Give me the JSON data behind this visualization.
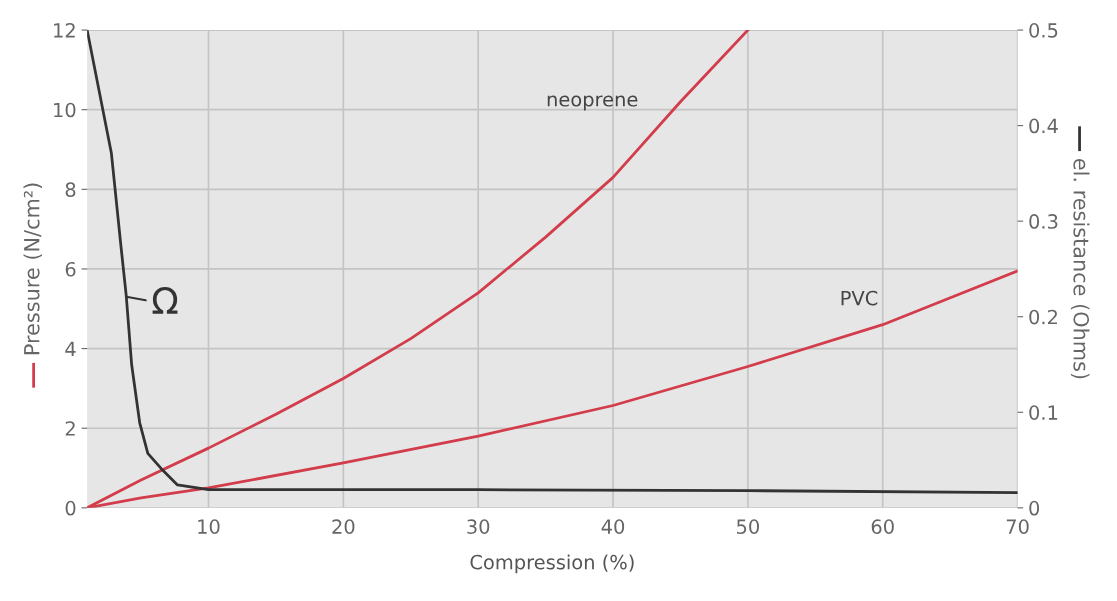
{
  "chart_data": {
    "type": "line",
    "xlabel": "Compression (%)",
    "ylabel": "Pressure (N/cm²)",
    "y2label": "el. resistance (Ohms)",
    "xlim": [
      1,
      70
    ],
    "xticks": [
      10,
      20,
      30,
      40,
      50,
      60,
      70
    ],
    "ylim": [
      0,
      12
    ],
    "yticks": [
      0,
      2,
      4,
      6,
      8,
      10,
      12
    ],
    "y2lim": [
      0,
      0.5
    ],
    "y2ticks": [
      0,
      0.1,
      0.2,
      0.3,
      0.4,
      0.5
    ],
    "grid": true,
    "marker": "none",
    "line_style": "solid",
    "series": [
      {
        "name": "neoprene",
        "color": "#d23c4b",
        "x": [
          1,
          5,
          10,
          15,
          20,
          25,
          30,
          35,
          40,
          45,
          50
        ],
        "values": [
          0,
          0.7,
          1.5,
          2.35,
          3.25,
          4.25,
          5.4,
          6.8,
          8.3,
          10.2,
          12
        ]
      },
      {
        "name": "PVC",
        "color": "#d23c4b",
        "x": [
          1,
          5,
          10,
          20,
          30,
          40,
          50,
          60,
          70
        ],
        "values": [
          0,
          0.25,
          0.5,
          1.13,
          1.8,
          2.57,
          3.55,
          4.6,
          5.95
        ]
      },
      {
        "color": "#333333",
        "axis": "y2",
        "x": [
          1,
          2.8,
          3.5,
          3.9,
          4.3,
          4.9,
          5.5,
          6.5,
          7.7,
          10,
          30,
          50,
          70
        ],
        "values": [
          0.5,
          0.371,
          0.275,
          0.222,
          0.15,
          0.089,
          0.057,
          0.041,
          0.024,
          0.019,
          0.019,
          0.018,
          0.016
        ]
      }
    ],
    "annotations": [
      {
        "text": "Ω",
        "x": 3.9,
        "y": 5.3
      }
    ]
  }
}
